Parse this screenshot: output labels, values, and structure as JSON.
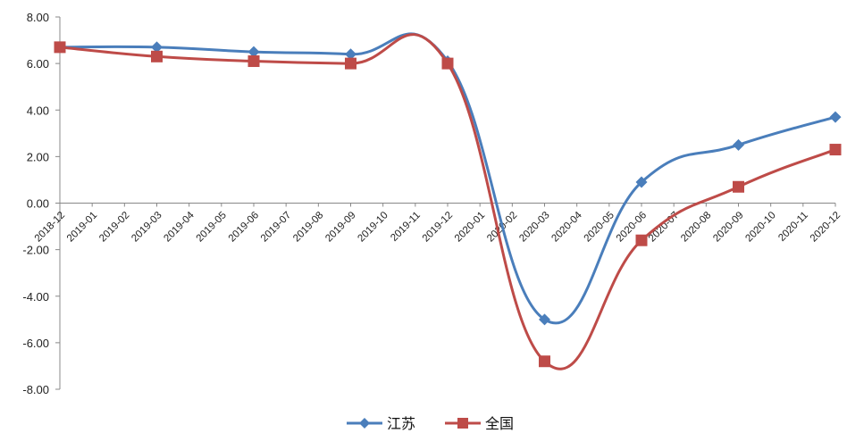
{
  "chart_data": {
    "type": "line",
    "x": [
      "2018-12",
      "2019-01",
      "2019-02",
      "2019-03",
      "2019-04",
      "2019-05",
      "2019-06",
      "2019-07",
      "2019-08",
      "2019-09",
      "2019-10",
      "2019-11",
      "2019-12",
      "2020-01",
      "2020-02",
      "2020-03",
      "2020-04",
      "2020-05",
      "2020-06",
      "2020-07",
      "2020-08",
      "2020-09",
      "2020-10",
      "2020-11",
      "2020-12"
    ],
    "series": [
      {
        "name": "江苏",
        "color": "#4a7ebb",
        "marker": "diamond",
        "points": [
          {
            "x": "2018-12",
            "y": 6.7
          },
          {
            "x": "2019-03",
            "y": 6.7
          },
          {
            "x": "2019-06",
            "y": 6.5
          },
          {
            "x": "2019-09",
            "y": 6.4
          },
          {
            "x": "2019-12",
            "y": 6.1
          },
          {
            "x": "2020-03",
            "y": -5.0
          },
          {
            "x": "2020-06",
            "y": 0.9
          },
          {
            "x": "2020-09",
            "y": 2.5
          },
          {
            "x": "2020-12",
            "y": 3.7
          }
        ]
      },
      {
        "name": "全国",
        "color": "#be4b48",
        "marker": "square",
        "points": [
          {
            "x": "2018-12",
            "y": 6.7
          },
          {
            "x": "2019-03",
            "y": 6.3
          },
          {
            "x": "2019-06",
            "y": 6.1
          },
          {
            "x": "2019-09",
            "y": 6.0
          },
          {
            "x": "2019-12",
            "y": 6.0
          },
          {
            "x": "2020-03",
            "y": -6.8
          },
          {
            "x": "2020-06",
            "y": -1.6
          },
          {
            "x": "2020-09",
            "y": 0.7
          },
          {
            "x": "2020-12",
            "y": 2.3
          }
        ]
      }
    ],
    "y_ticks": [
      "8.00",
      "6.00",
      "4.00",
      "2.00",
      "0.00",
      "-2.00",
      "-4.00",
      "-6.00",
      "-8.00"
    ],
    "ylim": [
      -8,
      8
    ],
    "smooth": true,
    "grid": false,
    "legend_position": "bottom-center",
    "title": "",
    "xlabel": "",
    "ylabel": ""
  }
}
